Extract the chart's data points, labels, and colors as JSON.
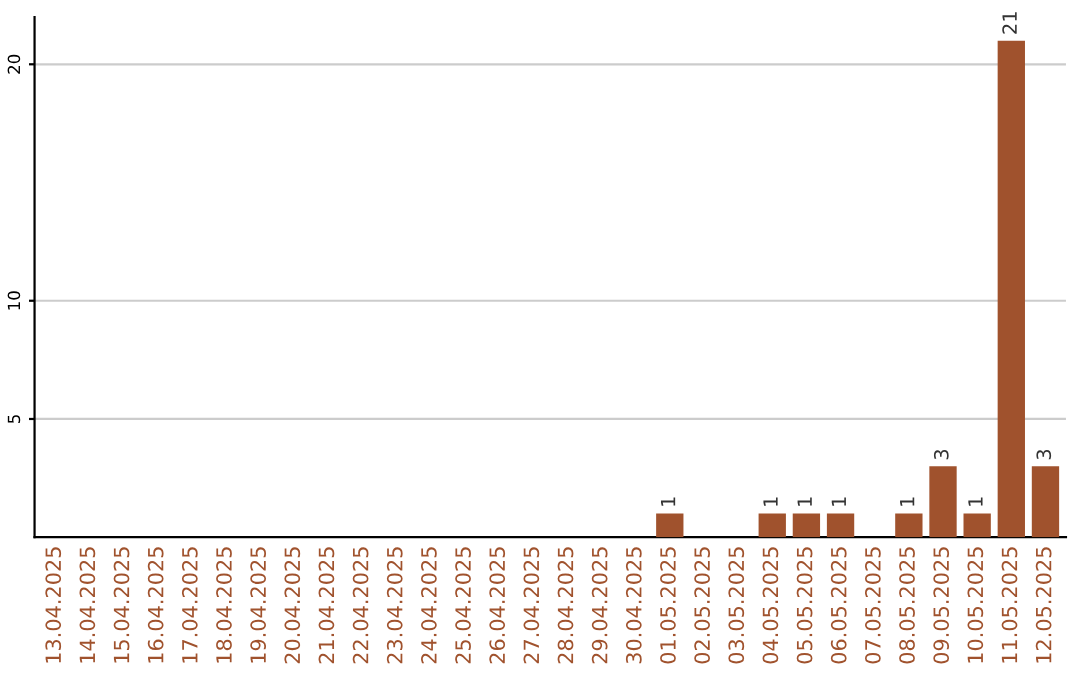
{
  "chart_data": {
    "type": "bar",
    "categories": [
      "13.04.2025",
      "14.04.2025",
      "15.04.2025",
      "16.04.2025",
      "17.04.2025",
      "18.04.2025",
      "19.04.2025",
      "20.04.2025",
      "21.04.2025",
      "22.04.2025",
      "23.04.2025",
      "24.04.2025",
      "25.04.2025",
      "26.04.2025",
      "27.04.2025",
      "28.04.2025",
      "29.04.2025",
      "30.04.2025",
      "01.05.2025",
      "02.05.2025",
      "03.05.2025",
      "04.05.2025",
      "05.05.2025",
      "06.05.2025",
      "07.05.2025",
      "08.05.2025",
      "09.05.2025",
      "10.05.2025",
      "11.05.2025",
      "12.05.2025"
    ],
    "values": [
      0,
      0,
      0,
      0,
      0,
      0,
      0,
      0,
      0,
      0,
      0,
      0,
      0,
      0,
      0,
      0,
      0,
      0,
      1,
      0,
      0,
      1,
      1,
      1,
      0,
      1,
      3,
      1,
      21,
      3
    ],
    "value_labels": [
      null,
      null,
      null,
      null,
      null,
      null,
      null,
      null,
      null,
      null,
      null,
      null,
      null,
      null,
      null,
      null,
      null,
      null,
      "1",
      null,
      null,
      "1",
      "1",
      "1",
      null,
      "1",
      "3",
      "1",
      "21",
      "3"
    ],
    "color": "#a0522d",
    "ylim": [
      0,
      22
    ],
    "yticks": [
      5,
      10,
      20
    ],
    "grid": "y"
  }
}
